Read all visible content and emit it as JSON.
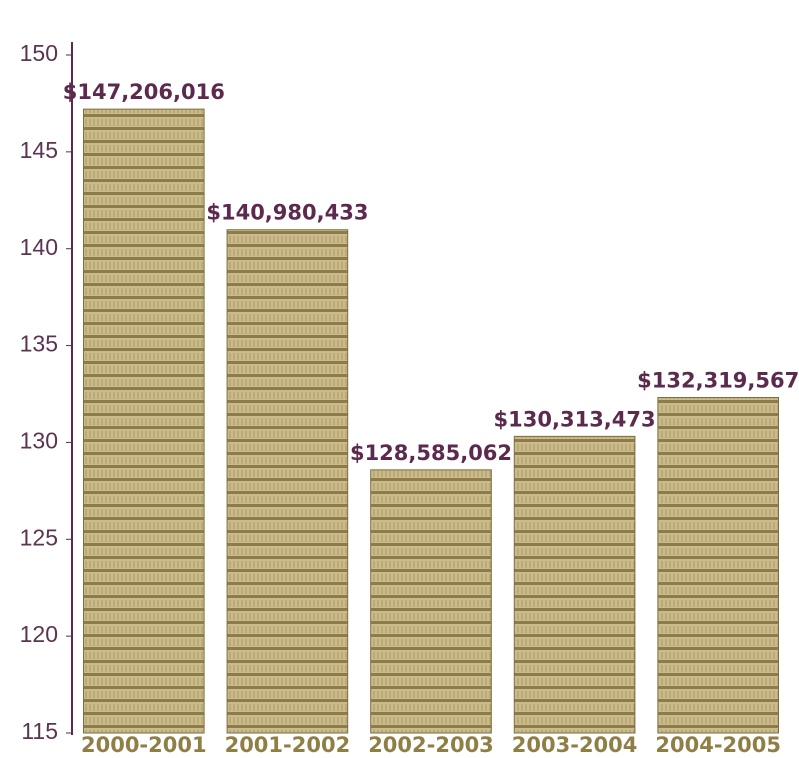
{
  "chart_data": {
    "type": "bar",
    "categories": [
      "2000-2001",
      "2001-2002",
      "2002-2003",
      "2003-2004",
      "2004-2005"
    ],
    "values": [
      147.206016,
      140.980433,
      128.585062,
      130.313473,
      132.319567
    ],
    "value_labels": [
      "$147,206,016",
      "$140,980,433",
      "$128,585,062",
      "$130,313,473",
      "$132,319,567"
    ],
    "color": "#cbbb8c",
    "ylim": [
      115,
      150
    ],
    "yticks": [
      115,
      120,
      125,
      130,
      135,
      140,
      145,
      150
    ]
  }
}
